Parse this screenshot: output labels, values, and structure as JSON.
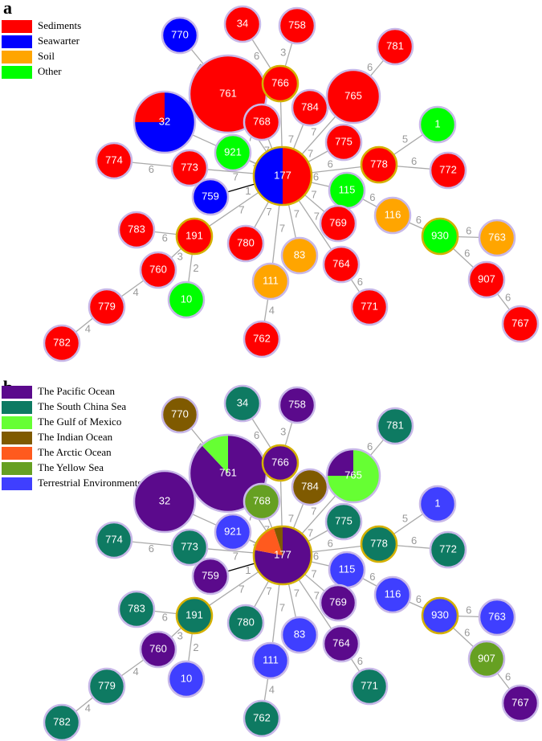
{
  "panels": [
    {
      "label": "a",
      "legend": [
        {
          "text": "Sediments",
          "color": "#ff0000"
        },
        {
          "text": "Seawarter",
          "color": "#0000ff"
        },
        {
          "text": "Soil",
          "color": "#ffa500"
        },
        {
          "text": "Other",
          "color": "#00ff00"
        }
      ],
      "nodes": [
        {
          "label": "770"
        },
        {
          "label": "34"
        },
        {
          "label": "758"
        },
        {
          "label": "781"
        },
        {
          "label": "761"
        },
        {
          "label": "766"
        },
        {
          "label": "765"
        },
        {
          "label": "32"
        },
        {
          "label": "784"
        },
        {
          "label": "768"
        },
        {
          "label": "1"
        },
        {
          "label": "921"
        },
        {
          "label": "775"
        },
        {
          "label": "778"
        },
        {
          "label": "772"
        },
        {
          "label": "774"
        },
        {
          "label": "773"
        },
        {
          "label": "177"
        },
        {
          "label": "759"
        },
        {
          "label": "115"
        },
        {
          "label": "116"
        },
        {
          "label": "769"
        },
        {
          "label": "783"
        },
        {
          "label": "191"
        },
        {
          "label": "930"
        },
        {
          "label": "763"
        },
        {
          "label": "780"
        },
        {
          "label": "83"
        },
        {
          "label": "764"
        },
        {
          "label": "760"
        },
        {
          "label": "111"
        },
        {
          "label": "907"
        },
        {
          "label": "10"
        },
        {
          "label": "771"
        },
        {
          "label": "779"
        },
        {
          "label": "767"
        },
        {
          "label": "762"
        },
        {
          "label": "782"
        }
      ],
      "edges": [
        {
          "label": "4"
        },
        {
          "label": "6"
        },
        {
          "label": "3"
        },
        {
          "label": "6"
        },
        {
          "label": "4"
        },
        {
          "label": "7"
        },
        {
          "label": "7"
        },
        {
          "label": "7"
        },
        {
          "label": "7"
        },
        {
          "label": "7"
        },
        {
          "label": "5"
        },
        {
          "label": "7"
        },
        {
          "label": "7"
        },
        {
          "label": "6"
        },
        {
          "label": "6"
        },
        {
          "label": "6"
        },
        {
          "label": "7"
        },
        {
          "label": "1"
        },
        {
          "label": "6"
        },
        {
          "label": "6"
        },
        {
          "label": "6"
        },
        {
          "label": "6"
        },
        {
          "label": "6"
        },
        {
          "label": "6"
        },
        {
          "label": "7"
        },
        {
          "label": "7"
        },
        {
          "label": "6"
        },
        {
          "label": "3"
        },
        {
          "label": "2"
        },
        {
          "label": "4"
        },
        {
          "label": "4"
        },
        {
          "label": "7"
        },
        {
          "label": "7"
        },
        {
          "label": "7"
        },
        {
          "label": "6"
        },
        {
          "label": "7"
        },
        {
          "label": "4"
        }
      ]
    },
    {
      "label": "b",
      "legend": [
        {
          "text": "The Pacific Ocean",
          "color": "#5b0a8c"
        },
        {
          "text": "The South China Sea",
          "color": "#0e7a62"
        },
        {
          "text": "The Gulf of Mexico",
          "color": "#66ff33"
        },
        {
          "text": "The Indian Ocean",
          "color": "#7f5a00"
        },
        {
          "text": "The Arctic Ocean",
          "color": "#ff5a1e"
        },
        {
          "text": "The Yellow Sea",
          "color": "#66a022"
        },
        {
          "text": "Terrestrial Environments",
          "color": "#3f3fff"
        }
      ],
      "nodes": [
        {
          "label": "770"
        },
        {
          "label": "34"
        },
        {
          "label": "758"
        },
        {
          "label": "781"
        },
        {
          "label": "761"
        },
        {
          "label": "766"
        },
        {
          "label": "765"
        },
        {
          "label": "32"
        },
        {
          "label": "784"
        },
        {
          "label": "768"
        },
        {
          "label": "1"
        },
        {
          "label": "921"
        },
        {
          "label": "775"
        },
        {
          "label": "778"
        },
        {
          "label": "772"
        },
        {
          "label": "774"
        },
        {
          "label": "773"
        },
        {
          "label": "177"
        },
        {
          "label": "759"
        },
        {
          "label": "115"
        },
        {
          "label": "116"
        },
        {
          "label": "769"
        },
        {
          "label": "783"
        },
        {
          "label": "191"
        },
        {
          "label": "930"
        },
        {
          "label": "763"
        },
        {
          "label": "780"
        },
        {
          "label": "83"
        },
        {
          "label": "764"
        },
        {
          "label": "760"
        },
        {
          "label": "111"
        },
        {
          "label": "907"
        },
        {
          "label": "10"
        },
        {
          "label": "771"
        },
        {
          "label": "779"
        },
        {
          "label": "767"
        },
        {
          "label": "762"
        },
        {
          "label": "782"
        }
      ],
      "edges": [
        {
          "label": "4"
        },
        {
          "label": "6"
        },
        {
          "label": "3"
        },
        {
          "label": "6"
        },
        {
          "label": "4"
        },
        {
          "label": "7"
        },
        {
          "label": "7"
        },
        {
          "label": "7"
        },
        {
          "label": "7"
        },
        {
          "label": "7"
        },
        {
          "label": "5"
        },
        {
          "label": "7"
        },
        {
          "label": "7"
        },
        {
          "label": "6"
        },
        {
          "label": "6"
        },
        {
          "label": "6"
        },
        {
          "label": "7"
        },
        {
          "label": "1"
        },
        {
          "label": "6"
        },
        {
          "label": "6"
        },
        {
          "label": "6"
        },
        {
          "label": "6"
        },
        {
          "label": "6"
        },
        {
          "label": "6"
        },
        {
          "label": "7"
        },
        {
          "label": "7"
        },
        {
          "label": "6"
        },
        {
          "label": "3"
        },
        {
          "label": "2"
        },
        {
          "label": "4"
        },
        {
          "label": "4"
        },
        {
          "label": "7"
        },
        {
          "label": "7"
        },
        {
          "label": "7"
        },
        {
          "label": "6"
        },
        {
          "label": "7"
        },
        {
          "label": "4"
        }
      ]
    }
  ]
}
